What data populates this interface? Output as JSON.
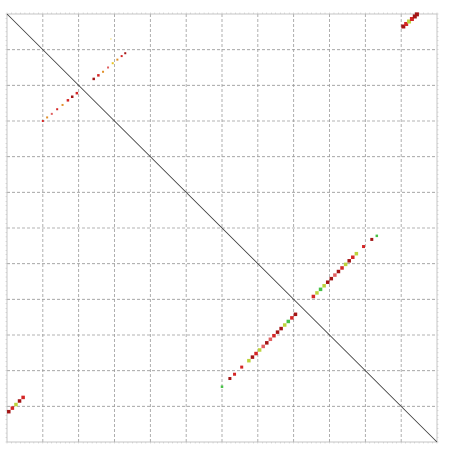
{
  "chart_data": {
    "type": "scatter",
    "title": "",
    "xlabel": "",
    "ylabel": "",
    "xlim": [
      0,
      12
    ],
    "ylim": [
      0,
      12
    ],
    "grid": true,
    "diagonal": true,
    "gridlines": [
      1,
      2,
      3,
      4,
      5,
      6,
      7,
      8,
      9,
      10,
      11
    ],
    "colors": {
      "dark_red": "#a31515",
      "red": "#d42626",
      "light_red": "#e06060",
      "yellow_green": "#bcd33c",
      "green": "#46c246",
      "orange": "#e0902a",
      "yellow": "#e8c420"
    },
    "series": [
      {
        "points": [
          {
            "x": 11.06,
            "y": 11.65,
            "size": 4,
            "color": "dark_red"
          },
          {
            "x": 11.14,
            "y": 11.72,
            "size": 4,
            "color": "red"
          },
          {
            "x": 11.22,
            "y": 11.79,
            "size": 4,
            "color": "yellow_green"
          },
          {
            "x": 11.3,
            "y": 11.86,
            "size": 4,
            "color": "red"
          },
          {
            "x": 11.38,
            "y": 11.93,
            "size": 4,
            "color": "dark_red"
          },
          {
            "x": 11.44,
            "y": 11.99,
            "size": 4,
            "color": "dark_red"
          },
          {
            "x": 1.0,
            "y": 9.0,
            "size": 2,
            "color": "red"
          },
          {
            "x": 1.12,
            "y": 9.1,
            "size": 2,
            "color": "orange"
          },
          {
            "x": 1.25,
            "y": 9.2,
            "size": 2,
            "color": "light_red"
          },
          {
            "x": 1.4,
            "y": 9.33,
            "size": 2,
            "color": "red"
          },
          {
            "x": 1.55,
            "y": 9.45,
            "size": 2,
            "color": "orange"
          },
          {
            "x": 1.7,
            "y": 9.58,
            "size": 2.5,
            "color": "red"
          },
          {
            "x": 1.82,
            "y": 9.68,
            "size": 2.5,
            "color": "dark_red"
          },
          {
            "x": 1.95,
            "y": 9.78,
            "size": 2.5,
            "color": "red"
          },
          {
            "x": 2.42,
            "y": 10.18,
            "size": 2.5,
            "color": "dark_red"
          },
          {
            "x": 2.55,
            "y": 10.28,
            "size": 2.5,
            "color": "red"
          },
          {
            "x": 2.68,
            "y": 10.38,
            "size": 2,
            "color": "orange"
          },
          {
            "x": 2.82,
            "y": 10.5,
            "size": 2,
            "color": "light_red"
          },
          {
            "x": 2.95,
            "y": 10.62,
            "size": 2,
            "color": "yellow"
          },
          {
            "x": 3.08,
            "y": 10.72,
            "size": 2,
            "color": "orange"
          },
          {
            "x": 3.2,
            "y": 10.82,
            "size": 2,
            "color": "red"
          },
          {
            "x": 3.3,
            "y": 10.9,
            "size": 2,
            "color": "dark_red"
          },
          {
            "x": 2.9,
            "y": 11.3,
            "size": 1,
            "color": "yellow"
          },
          {
            "x": 6.0,
            "y": 1.55,
            "size": 2.5,
            "color": "green"
          },
          {
            "x": 6.22,
            "y": 1.78,
            "size": 3,
            "color": "dark_red"
          },
          {
            "x": 6.35,
            "y": 1.9,
            "size": 3,
            "color": "red"
          },
          {
            "x": 6.55,
            "y": 2.1,
            "size": 3,
            "color": "red"
          },
          {
            "x": 6.75,
            "y": 2.28,
            "size": 3.5,
            "color": "yellow_green"
          },
          {
            "x": 6.85,
            "y": 2.38,
            "size": 3.5,
            "color": "dark_red"
          },
          {
            "x": 6.95,
            "y": 2.48,
            "size": 3.5,
            "color": "red"
          },
          {
            "x": 7.05,
            "y": 2.58,
            "size": 3.5,
            "color": "yellow_green"
          },
          {
            "x": 7.15,
            "y": 2.68,
            "size": 3.5,
            "color": "light_red"
          },
          {
            "x": 7.25,
            "y": 2.78,
            "size": 3.5,
            "color": "dark_red"
          },
          {
            "x": 7.35,
            "y": 2.88,
            "size": 3.5,
            "color": "light_red"
          },
          {
            "x": 7.45,
            "y": 2.98,
            "size": 3.5,
            "color": "red"
          },
          {
            "x": 7.55,
            "y": 3.08,
            "size": 3.5,
            "color": "dark_red"
          },
          {
            "x": 7.65,
            "y": 3.18,
            "size": 3.5,
            "color": "dark_red"
          },
          {
            "x": 7.75,
            "y": 3.28,
            "size": 3.5,
            "color": "yellow_green"
          },
          {
            "x": 7.85,
            "y": 3.38,
            "size": 3.5,
            "color": "green"
          },
          {
            "x": 7.95,
            "y": 3.48,
            "size": 3.5,
            "color": "red"
          },
          {
            "x": 8.05,
            "y": 3.58,
            "size": 3.5,
            "color": "dark_red"
          },
          {
            "x": 8.55,
            "y": 4.08,
            "size": 3.5,
            "color": "red"
          },
          {
            "x": 8.65,
            "y": 4.18,
            "size": 3.5,
            "color": "yellow_green"
          },
          {
            "x": 8.75,
            "y": 4.28,
            "size": 3.5,
            "color": "green"
          },
          {
            "x": 8.85,
            "y": 4.38,
            "size": 3.5,
            "color": "yellow_green"
          },
          {
            "x": 8.95,
            "y": 4.48,
            "size": 3.5,
            "color": "dark_red"
          },
          {
            "x": 9.05,
            "y": 4.58,
            "size": 3.5,
            "color": "dark_red"
          },
          {
            "x": 9.15,
            "y": 4.68,
            "size": 3.5,
            "color": "light_red"
          },
          {
            "x": 9.25,
            "y": 4.78,
            "size": 3.5,
            "color": "dark_red"
          },
          {
            "x": 9.35,
            "y": 4.88,
            "size": 3.5,
            "color": "red"
          },
          {
            "x": 9.45,
            "y": 4.98,
            "size": 3.5,
            "color": "yellow_green"
          },
          {
            "x": 9.55,
            "y": 5.08,
            "size": 3.5,
            "color": "dark_red"
          },
          {
            "x": 9.65,
            "y": 5.18,
            "size": 3.5,
            "color": "red"
          },
          {
            "x": 9.75,
            "y": 5.28,
            "size": 3.5,
            "color": "yellow_green"
          },
          {
            "x": 9.95,
            "y": 5.48,
            "size": 3,
            "color": "red"
          },
          {
            "x": 10.18,
            "y": 5.68,
            "size": 3,
            "color": "dark_red"
          },
          {
            "x": 10.32,
            "y": 5.78,
            "size": 2.5,
            "color": "green"
          },
          {
            "x": 0.05,
            "y": 0.85,
            "size": 3.5,
            "color": "dark_red"
          },
          {
            "x": 0.15,
            "y": 0.95,
            "size": 3.5,
            "color": "red"
          },
          {
            "x": 0.25,
            "y": 1.05,
            "size": 3.5,
            "color": "yellow_green"
          },
          {
            "x": 0.35,
            "y": 1.15,
            "size": 3.5,
            "color": "dark_red"
          },
          {
            "x": 0.45,
            "y": 1.25,
            "size": 3.5,
            "color": "red"
          }
        ]
      }
    ]
  }
}
